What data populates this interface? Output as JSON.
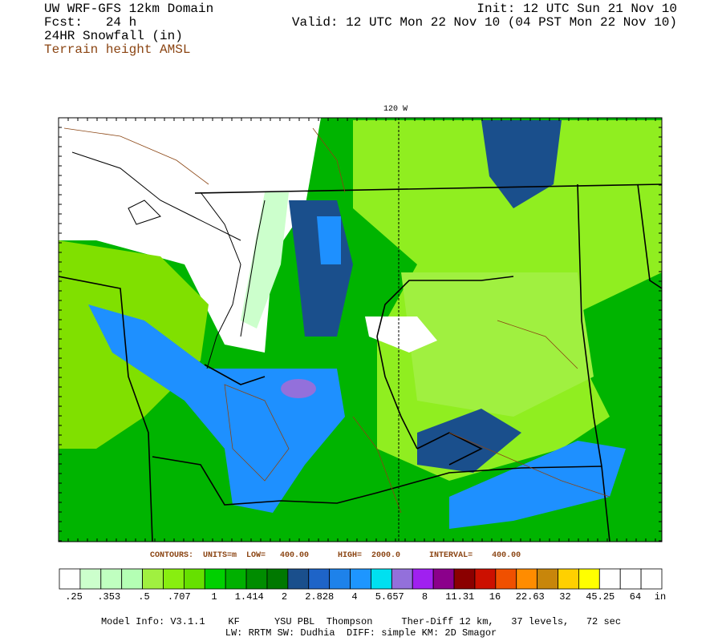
{
  "header": {
    "title": "UW WRF-GFS 12km Domain",
    "fcst": "Fcst:   24 h",
    "field": "24HR Snowfall (in)",
    "terrain": "Terrain height AMSL",
    "init": "Init: 12 UTC Sun 21 Nov 10",
    "valid": "Valid: 12 UTC Mon 22 Nov 10 (04 PST Mon 22 Nov 10)"
  },
  "map": {
    "meridian_label": "120 W"
  },
  "contours": "CONTOURS:  UNITS=m  LOW=   400.00      HIGH=  2000.0      INTERVAL=    400.00",
  "colorbar": {
    "colors": [
      "#ffffff",
      "#ccffcc",
      "#c0ffc0",
      "#b4ffb4",
      "#a0f040",
      "#88ee10",
      "#66e000",
      "#00d000",
      "#00b000",
      "#008c00",
      "#007800",
      "#1a4f8c",
      "#1e64c8",
      "#1e82ea",
      "#1e96ff",
      "#00e0f0",
      "#9370db",
      "#a020f0",
      "#8b008b",
      "#8b0000",
      "#cc1000",
      "#f05000",
      "#ff8c00",
      "#c8860b",
      "#ffd000",
      "#ffff00",
      "#ffffff",
      "#ffffff",
      "#ffffff"
    ],
    "labels": [
      ".25",
      ".353",
      ".5",
      ".707",
      "1",
      "1.414",
      "2",
      "2.828",
      "4",
      "5.657",
      "8",
      "11.31",
      "16",
      "22.63",
      "32",
      "45.25",
      "64"
    ],
    "unit": "in"
  },
  "footer": {
    "line1": "Model Info: V3.1.1    KF      YSU PBL  Thompson     Ther-Diff 12 km,   37 levels,   72 sec",
    "line2": "LW: RRTM SW: Dudhia  DIFF: simple KM: 2D Smagor"
  }
}
